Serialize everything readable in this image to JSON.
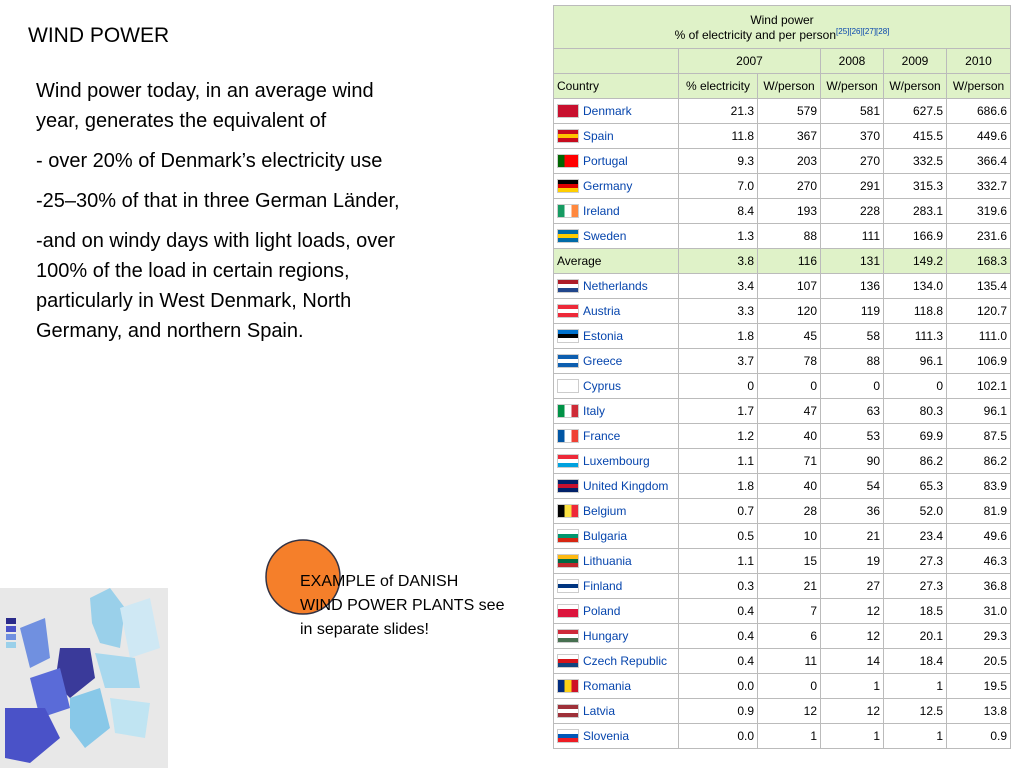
{
  "title": "WIND POWER",
  "body": [
    "Wind power today, in an average wind year, generates the equivalent of",
    "- over 20% of Denmark’s electricity use",
    "-25–30% of that in three German Länder,",
    "-and on windy days with light loads, over 100% of the load in certain regions, particularly in West Denmark, North Germany, and northern Spain."
  ],
  "note": "EXAMPLE of DANISH WIND POWER PLANTS see in separate slides!",
  "table": {
    "caption": "Wind power",
    "caption_sub": "% of electricity and per person",
    "refs": "[25][26][27][28]",
    "years": [
      "2007",
      "2008",
      "2009",
      "2010"
    ],
    "columns": [
      "Country",
      "% electricity",
      "W/person",
      "W/person",
      "W/person",
      "W/person"
    ],
    "rows": [
      [
        "Denmark",
        "21.3",
        "579",
        "581",
        "627.5",
        "686.6"
      ],
      [
        "Spain",
        "11.8",
        "367",
        "370",
        "415.5",
        "449.6"
      ],
      [
        "Portugal",
        "9.3",
        "203",
        "270",
        "332.5",
        "366.4"
      ],
      [
        "Germany",
        "7.0",
        "270",
        "291",
        "315.3",
        "332.7"
      ],
      [
        "Ireland",
        "8.4",
        "193",
        "228",
        "283.1",
        "319.6"
      ],
      [
        "Sweden",
        "1.3",
        "88",
        "111",
        "166.9",
        "231.6"
      ],
      [
        "Average",
        "3.8",
        "116",
        "131",
        "149.2",
        "168.3"
      ],
      [
        "Netherlands",
        "3.4",
        "107",
        "136",
        "134.0",
        "135.4"
      ],
      [
        "Austria",
        "3.3",
        "120",
        "119",
        "118.8",
        "120.7"
      ],
      [
        "Estonia",
        "1.8",
        "45",
        "58",
        "111.3",
        "111.0"
      ],
      [
        "Greece",
        "3.7",
        "78",
        "88",
        "96.1",
        "106.9"
      ],
      [
        "Cyprus",
        "0",
        "0",
        "0",
        "0",
        "102.1"
      ],
      [
        "Italy",
        "1.7",
        "47",
        "63",
        "80.3",
        "96.1"
      ],
      [
        "France",
        "1.2",
        "40",
        "53",
        "69.9",
        "87.5"
      ],
      [
        "Luxembourg",
        "1.1",
        "71",
        "90",
        "86.2",
        "86.2"
      ],
      [
        "United Kingdom",
        "1.8",
        "40",
        "54",
        "65.3",
        "83.9"
      ],
      [
        "Belgium",
        "0.7",
        "28",
        "36",
        "52.0",
        "81.9"
      ],
      [
        "Bulgaria",
        "0.5",
        "10",
        "21",
        "23.4",
        "49.6"
      ],
      [
        "Lithuania",
        "1.1",
        "15",
        "19",
        "27.3",
        "46.3"
      ],
      [
        "Finland",
        "0.3",
        "21",
        "27",
        "27.3",
        "36.8"
      ],
      [
        "Poland",
        "0.4",
        "7",
        "12",
        "18.5",
        "31.0"
      ],
      [
        "Hungary",
        "0.4",
        "6",
        "12",
        "20.1",
        "29.3"
      ],
      [
        "Czech Republic",
        "0.4",
        "11",
        "14",
        "18.4",
        "20.5"
      ],
      [
        "Romania",
        "0.0",
        "0",
        "1",
        "1",
        "19.5"
      ],
      [
        "Latvia",
        "0.9",
        "12",
        "12",
        "12.5",
        "13.8"
      ],
      [
        "Slovenia",
        "0.0",
        "1",
        "1",
        "1",
        "0.9"
      ]
    ]
  }
}
